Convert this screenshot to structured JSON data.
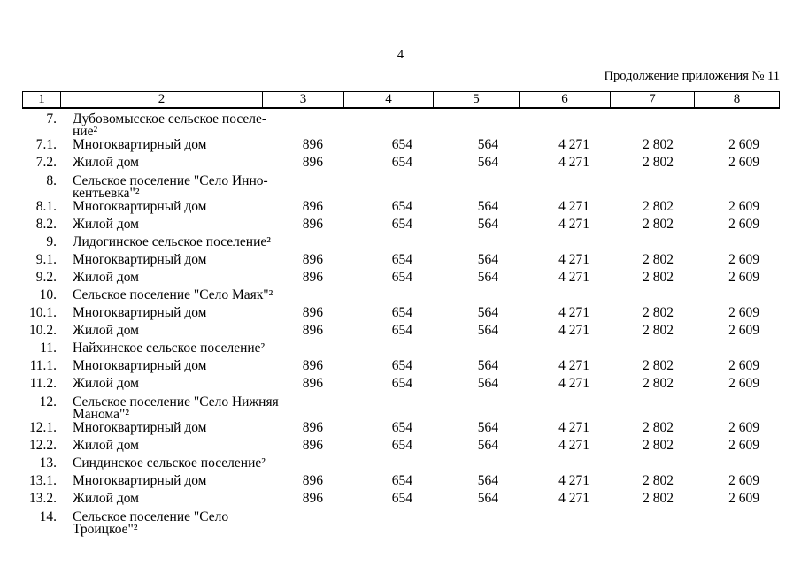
{
  "page": {
    "number": "4",
    "continuation_note": "Продолжение приложения № 11"
  },
  "table": {
    "column_numbers": [
      "1",
      "2",
      "3",
      "4",
      "5",
      "6",
      "7",
      "8"
    ],
    "rows": [
      {
        "num": "7.",
        "name": "Дубовомысское сельское поселе-\nние²",
        "values": []
      },
      {
        "num": "7.1.",
        "name": "Многоквартирный дом",
        "values": [
          "896",
          "654",
          "564",
          "4 271",
          "2 802",
          "2 609"
        ]
      },
      {
        "num": "7.2.",
        "name": "Жилой дом",
        "values": [
          "896",
          "654",
          "564",
          "4 271",
          "2 802",
          "2 609"
        ]
      },
      {
        "num": "8.",
        "name": "Сельское поселение \"Село Инно-\nкентьевка\"²",
        "values": []
      },
      {
        "num": "8.1.",
        "name": "Многоквартирный дом",
        "values": [
          "896",
          "654",
          "564",
          "4 271",
          "2 802",
          "2 609"
        ]
      },
      {
        "num": "8.2.",
        "name": "Жилой дом",
        "values": [
          "896",
          "654",
          "564",
          "4 271",
          "2 802",
          "2 609"
        ]
      },
      {
        "num": "9.",
        "name": "Лидогинское сельское поселение²",
        "values": []
      },
      {
        "num": "9.1.",
        "name": "Многоквартирный дом",
        "values": [
          "896",
          "654",
          "564",
          "4 271",
          "2 802",
          "2 609"
        ]
      },
      {
        "num": "9.2.",
        "name": "Жилой дом",
        "values": [
          "896",
          "654",
          "564",
          "4 271",
          "2 802",
          "2 609"
        ]
      },
      {
        "num": "10.",
        "name": "Сельское поселение \"Село Маяк\"²",
        "values": []
      },
      {
        "num": "10.1.",
        "name": "Многоквартирный дом",
        "values": [
          "896",
          "654",
          "564",
          "4 271",
          "2 802",
          "2 609"
        ]
      },
      {
        "num": "10.2.",
        "name": "Жилой дом",
        "values": [
          "896",
          "654",
          "564",
          "4 271",
          "2 802",
          "2 609"
        ]
      },
      {
        "num": "11.",
        "name": "Найхинское сельское поселение²",
        "values": []
      },
      {
        "num": "11.1.",
        "name": "Многоквартирный дом",
        "values": [
          "896",
          "654",
          "564",
          "4 271",
          "2 802",
          "2 609"
        ]
      },
      {
        "num": "11.2.",
        "name": "Жилой дом",
        "values": [
          "896",
          "654",
          "564",
          "4 271",
          "2 802",
          "2 609"
        ]
      },
      {
        "num": "12.",
        "name": "Сельское поселение \"Село Нижняя\nМанома\"²",
        "values": []
      },
      {
        "num": "12.1.",
        "name": "Многоквартирный дом",
        "values": [
          "896",
          "654",
          "564",
          "4 271",
          "2 802",
          "2 609"
        ]
      },
      {
        "num": "12.2.",
        "name": "Жилой дом",
        "values": [
          "896",
          "654",
          "564",
          "4 271",
          "2 802",
          "2 609"
        ]
      },
      {
        "num": "13.",
        "name": "Синдинское сельское поселение²",
        "values": []
      },
      {
        "num": "13.1.",
        "name": "Многоквартирный дом",
        "values": [
          "896",
          "654",
          "564",
          "4 271",
          "2 802",
          "2 609"
        ]
      },
      {
        "num": "13.2.",
        "name": "Жилой дом",
        "values": [
          "896",
          "654",
          "564",
          "4 271",
          "2 802",
          "2 609"
        ]
      },
      {
        "num": "14.",
        "name": "Сельское поселение \"Село\nТроицкое\"²",
        "values": []
      }
    ]
  }
}
